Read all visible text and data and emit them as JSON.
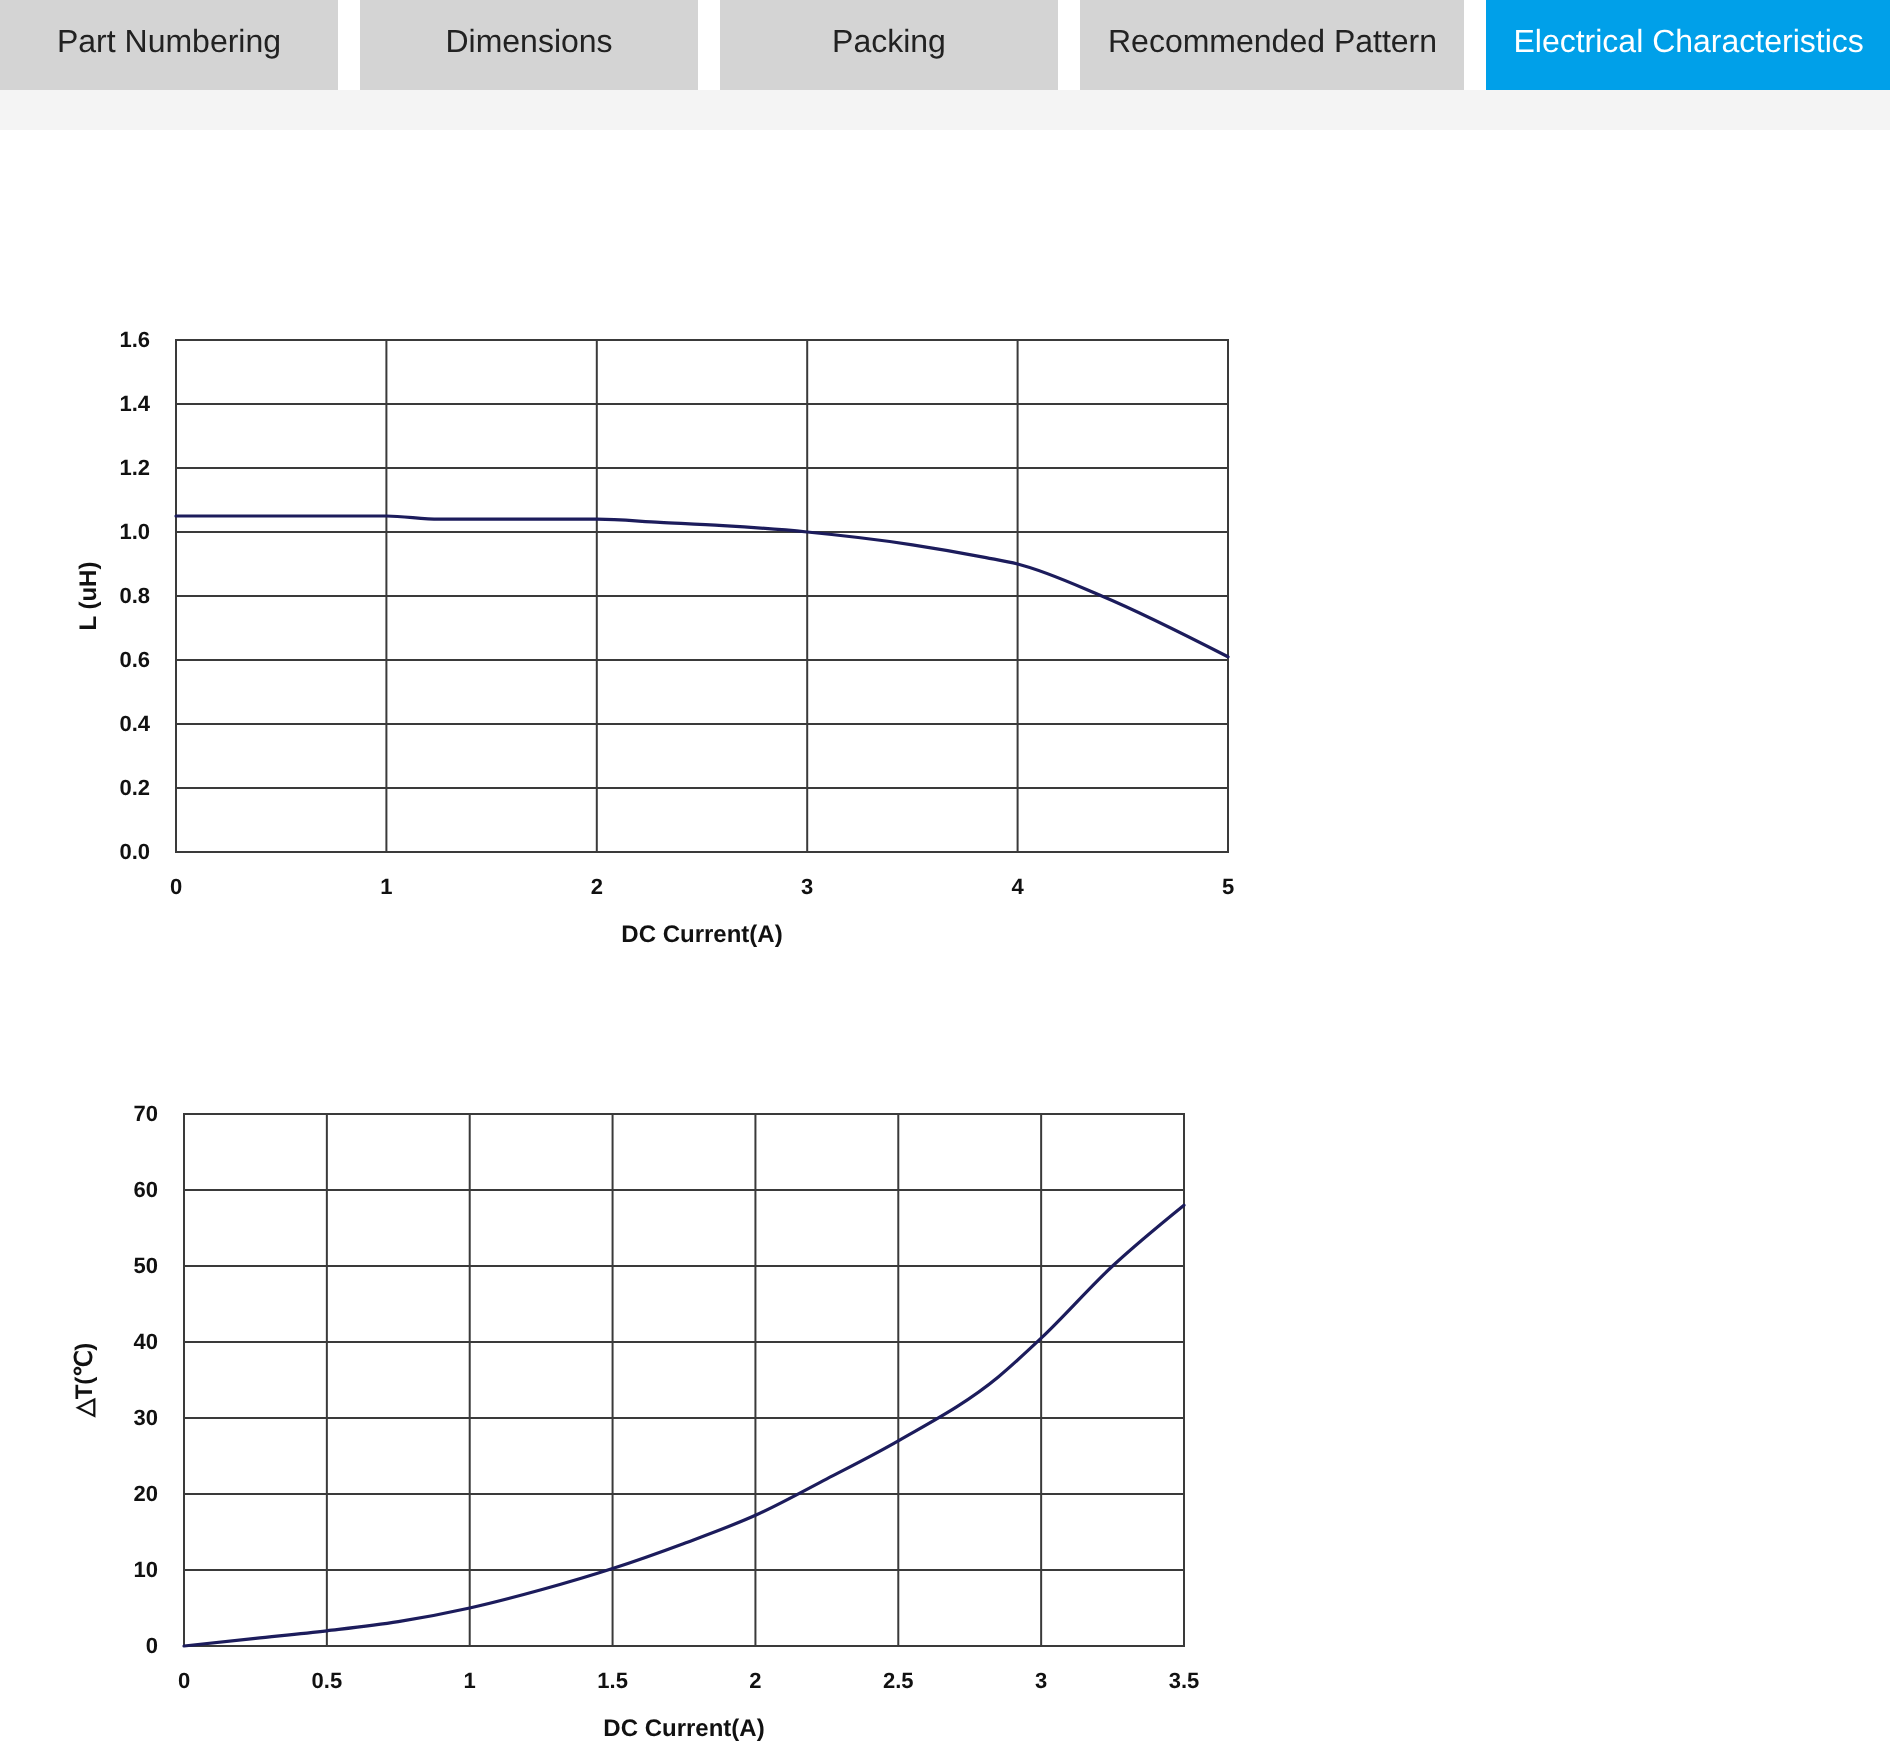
{
  "chart_data": [
    {
      "type": "other",
      "annotations": [
        "Part Numbering",
        "Dimensions",
        "Packing",
        "Recommended Pattern",
        "Electrical Characteristics"
      ]
    },
    {
      "type": "line",
      "xlabel": "DC Current(A)",
      "ylabel": "L (uH)",
      "x": [
        0,
        1,
        1.25,
        2,
        2.3,
        2.6,
        3,
        3.5,
        3.85,
        4,
        4.4,
        5
      ],
      "values": [
        1.05,
        1.05,
        1.04,
        1.04,
        1.03,
        1.02,
        1.0,
        0.96,
        0.92,
        0.9,
        0.8,
        0.61
      ],
      "color": "#1c1c5c",
      "xlim": [
        0,
        5
      ],
      "ylim": [
        0,
        1.6
      ],
      "xticks": [
        0,
        1,
        2,
        3,
        4,
        5
      ],
      "yticks": [
        {
          "value": 0,
          "label": "0.0"
        },
        0.2,
        0.4,
        0.6,
        0.8,
        {
          "value": 1,
          "label": "1.0"
        },
        1.2,
        1.4,
        1.6
      ],
      "grid": true
    },
    {
      "type": "line",
      "xlabel": "DC Current(A)",
      "ylabel": "△T(℃)",
      "x": [
        0,
        0.25,
        0.5,
        0.75,
        1,
        1.25,
        1.5,
        1.75,
        2,
        2.25,
        2.5,
        2.85,
        3,
        3.25,
        3.5
      ],
      "values": [
        0,
        1,
        2,
        3.2,
        5,
        7.4,
        10.2,
        13.5,
        17.2,
        22,
        27,
        35.4,
        40.5,
        50,
        58
      ],
      "color": "#1c1c5c",
      "xlim": [
        0,
        3.5
      ],
      "ylim": [
        0,
        70
      ],
      "xticks": [
        0,
        0.5,
        1,
        1.5,
        2,
        2.5,
        3,
        3.5
      ],
      "yticks": [
        0,
        10,
        20,
        30,
        40,
        50,
        60,
        70
      ],
      "grid": true
    }
  ]
}
